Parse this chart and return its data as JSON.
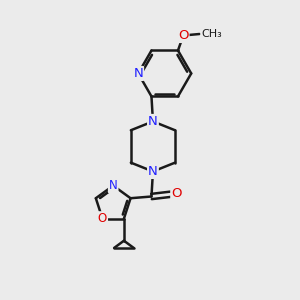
{
  "bg_color": "#ebebeb",
  "bond_color": "#1a1a1a",
  "n_color": "#2020ff",
  "o_color": "#e00000",
  "line_width": 1.8,
  "font_size_atom": 8.5,
  "fig_size": [
    3.0,
    3.0
  ],
  "dpi": 100,
  "xlim": [
    0,
    10
  ],
  "ylim": [
    0,
    10
  ]
}
